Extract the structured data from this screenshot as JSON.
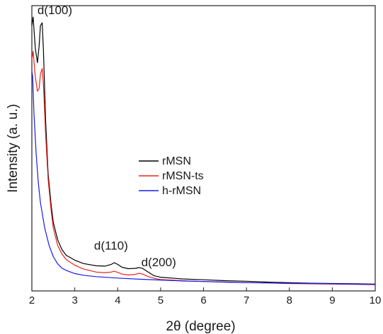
{
  "chart_data": {
    "type": "line",
    "xlabel": "2θ (degree)",
    "ylabel": "Intensity (a. u.)",
    "xlim": [
      2,
      10
    ],
    "ylim": [
      0,
      100
    ],
    "x_ticks": [
      2,
      3,
      4,
      5,
      6,
      7,
      8,
      9,
      10
    ],
    "grid": false,
    "legend": {
      "position": "center",
      "entries": [
        "rMSN",
        "rMSN-ts",
        "h-rMSN"
      ]
    },
    "annotations": [
      {
        "text": "d(100)",
        "x": 2.13,
        "y": 97
      },
      {
        "text": "d(110)",
        "x": 3.45,
        "y": 14.5
      },
      {
        "text": "d(200)",
        "x": 4.55,
        "y": 8.7
      }
    ],
    "series": [
      {
        "name": "rMSN",
        "color": "#000000",
        "x": [
          2.0,
          2.03,
          2.08,
          2.13,
          2.17,
          2.2,
          2.24,
          2.27,
          2.32,
          2.38,
          2.45,
          2.5,
          2.6,
          2.7,
          2.8,
          3.0,
          3.2,
          3.5,
          3.7,
          3.85,
          3.92,
          4.0,
          4.1,
          4.25,
          4.4,
          4.5,
          4.58,
          4.7,
          4.85,
          5.0,
          5.5,
          6.0,
          6.5,
          7.0,
          7.5,
          8.0,
          8.5,
          9.0,
          9.5,
          10.0
        ],
        "y": [
          93,
          96,
          85,
          80,
          86,
          93,
          94,
          84,
          60,
          41,
          30,
          24,
          18,
          14.5,
          12.5,
          10.8,
          9.6,
          8.8,
          8.7,
          9.3,
          9.9,
          9.3,
          8.3,
          7.8,
          7.9,
          8.2,
          7.9,
          6.7,
          5.3,
          4.8,
          4.2,
          3.9,
          3.6,
          3.4,
          3.1,
          2.9,
          2.7,
          2.6,
          2.5,
          2.4
        ]
      },
      {
        "name": "rMSN-ts",
        "color": "#e8231d",
        "x": [
          2.0,
          2.03,
          2.08,
          2.13,
          2.17,
          2.2,
          2.24,
          2.27,
          2.32,
          2.38,
          2.45,
          2.5,
          2.6,
          2.7,
          2.8,
          3.0,
          3.2,
          3.5,
          3.7,
          3.85,
          3.92,
          4.0,
          4.1,
          4.25,
          4.4,
          4.5,
          4.58,
          4.7,
          4.85,
          5.0,
          5.5,
          6.0,
          6.5,
          7.0,
          7.5,
          8.0,
          8.5,
          9.0,
          9.5,
          10.0
        ],
        "y": [
          81,
          84,
          75,
          70,
          71,
          76,
          78,
          72,
          55,
          39,
          28,
          22,
          16,
          13,
          11,
          9.0,
          7.7,
          6.6,
          6.4,
          6.6,
          6.9,
          6.5,
          5.9,
          5.6,
          5.8,
          6.2,
          5.9,
          5.1,
          4.4,
          4.0,
          3.6,
          3.3,
          3.1,
          2.9,
          2.8,
          2.6,
          2.5,
          2.4,
          2.3,
          2.2
        ]
      },
      {
        "name": "h-rMSN",
        "color": "#1a1aee",
        "x": [
          2.0,
          2.02,
          2.05,
          2.1,
          2.15,
          2.2,
          2.3,
          2.4,
          2.5,
          2.6,
          2.7,
          2.8,
          3.0,
          3.2,
          3.5,
          4.0,
          4.5,
          5.0,
          5.5,
          6.0,
          6.5,
          7.0,
          7.5,
          8.0,
          8.5,
          9.0,
          9.5,
          10.0
        ],
        "y": [
          77,
          75,
          62,
          48,
          38,
          31,
          22,
          16,
          12,
          9.5,
          8.0,
          7.2,
          6.1,
          5.5,
          5.0,
          4.5,
          4.1,
          3.8,
          3.5,
          3.3,
          3.1,
          2.9,
          2.8,
          2.7,
          2.6,
          2.5,
          2.4,
          2.3
        ]
      }
    ]
  }
}
